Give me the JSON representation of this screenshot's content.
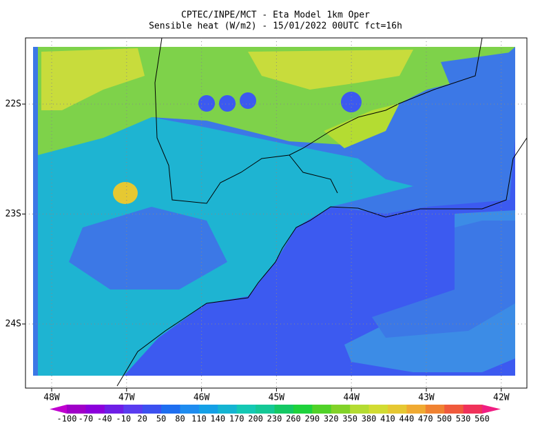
{
  "header": {
    "title_lines": [
      "CPTEC/INPE/MCT -  Eta Model 1km Oper",
      "Sensible heat (W/m2) - 15/01/2022 00UTC fct=16h"
    ]
  },
  "axes": {
    "x_labels": [
      "48W",
      "47W",
      "46W",
      "45W",
      "44W",
      "43W",
      "42W"
    ],
    "y_labels": [
      "22S",
      "23S",
      "24S"
    ]
  },
  "colorbar": {
    "labels": [
      "-100",
      "-70",
      "-40",
      "-10",
      "20",
      "50",
      "80",
      "110",
      "140",
      "170",
      "200",
      "230",
      "260",
      "290",
      "320",
      "350",
      "380",
      "410",
      "440",
      "470",
      "500",
      "530",
      "560"
    ],
    "colors": [
      "#c000d0",
      "#a000c8",
      "#8c00dc",
      "#6e1ee6",
      "#5a3cf0",
      "#3c50f0",
      "#1e6ef0",
      "#1e8cf0",
      "#14a0e6",
      "#14b4d2",
      "#14c8b4",
      "#14c896",
      "#14c864",
      "#1ed23c",
      "#50d228",
      "#82d228",
      "#b4dc32",
      "#d2dc32",
      "#e6c832",
      "#f0aa32",
      "#f08232",
      "#f05a3c",
      "#f0325a",
      "#f01e82"
    ]
  }
}
